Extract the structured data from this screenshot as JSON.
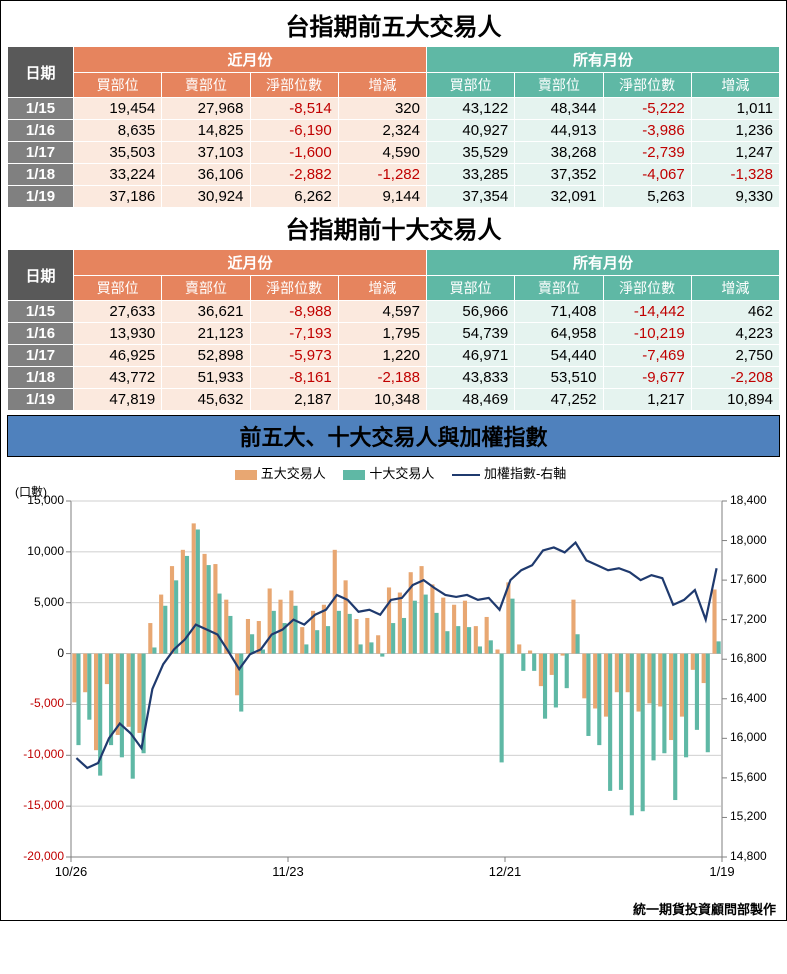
{
  "table5": {
    "title": "台指期前五大交易人",
    "date_hdr": "日期",
    "near_hdr": "近月份",
    "all_hdr": "所有月份",
    "sub_headers": [
      "買部位",
      "賣部位",
      "淨部位數",
      "增減"
    ],
    "rows": [
      {
        "date": "1/15",
        "near": [
          19454,
          27968,
          -8514,
          320
        ],
        "all": [
          43122,
          48344,
          -5222,
          1011
        ]
      },
      {
        "date": "1/16",
        "near": [
          8635,
          14825,
          -6190,
          2324
        ],
        "all": [
          40927,
          44913,
          -3986,
          1236
        ]
      },
      {
        "date": "1/17",
        "near": [
          35503,
          37103,
          -1600,
          4590
        ],
        "all": [
          35529,
          38268,
          -2739,
          1247
        ]
      },
      {
        "date": "1/18",
        "near": [
          33224,
          36106,
          -2882,
          -1282
        ],
        "all": [
          33285,
          37352,
          -4067,
          -1328
        ]
      },
      {
        "date": "1/19",
        "near": [
          37186,
          30924,
          6262,
          9144
        ],
        "all": [
          37354,
          32091,
          5263,
          9330
        ]
      }
    ]
  },
  "table10": {
    "title": "台指期前十大交易人",
    "rows": [
      {
        "date": "1/15",
        "near": [
          27633,
          36621,
          -8988,
          4597
        ],
        "all": [
          56966,
          71408,
          -14442,
          462
        ]
      },
      {
        "date": "1/16",
        "near": [
          13930,
          21123,
          -7193,
          1795
        ],
        "all": [
          54739,
          64958,
          -10219,
          4223
        ]
      },
      {
        "date": "1/17",
        "near": [
          46925,
          52898,
          -5973,
          1220
        ],
        "all": [
          46971,
          54440,
          -7469,
          2750
        ]
      },
      {
        "date": "1/18",
        "near": [
          43772,
          51933,
          -8161,
          -2188
        ],
        "all": [
          43833,
          53510,
          -9677,
          -2208
        ]
      },
      {
        "date": "1/19",
        "near": [
          47819,
          45632,
          2187,
          10348
        ],
        "all": [
          48469,
          47252,
          1217,
          10894
        ]
      }
    ]
  },
  "chart": {
    "title": "前五大、十大交易人與加權指數",
    "y_unit": "(口數)",
    "legend": {
      "s5": "五大交易人",
      "s10": "十大交易人",
      "idx": "加權指數-右軸"
    },
    "colors": {
      "s5": "#e8a772",
      "s10": "#5fb8a5",
      "idx": "#1f3a6e",
      "grid": "#bfbfbf",
      "axis": "#7f7f7f",
      "neg_label": "#c00000"
    },
    "left_axis": {
      "min": -20000,
      "max": 15000,
      "step": 5000
    },
    "right_axis": {
      "min": 14800,
      "max": 18400,
      "step": 400
    },
    "x_ticks": [
      "10/26",
      "11/23",
      "12/21",
      "1/19"
    ],
    "n_points": 60,
    "series5": [
      -4800,
      -3800,
      -9500,
      -3000,
      -8000,
      -7200,
      -7800,
      3000,
      5800,
      8600,
      10200,
      12800,
      9800,
      8800,
      5300,
      -4100,
      3400,
      3200,
      6400,
      5300,
      6200,
      2600,
      4200,
      4800,
      10200,
      7200,
      3400,
      3500,
      1800,
      6500,
      6000,
      8000,
      8600,
      6800,
      5500,
      4800,
      5200,
      2700,
      3600,
      400,
      7000,
      900,
      300,
      -3200,
      -2100,
      -200,
      5300,
      -4400,
      -5400,
      -6200,
      -3800,
      -3800,
      -5700,
      -4900,
      -5200,
      -8500,
      -6200,
      -1600,
      -2900,
      6300
    ],
    "series10": [
      -9000,
      -6500,
      -12000,
      -9000,
      -10200,
      -12300,
      -9800,
      600,
      4700,
      7200,
      9600,
      12200,
      8700,
      5900,
      3700,
      -5700,
      1900,
      400,
      4200,
      3000,
      4700,
      900,
      2300,
      2700,
      4200,
      3900,
      900,
      1100,
      -300,
      3000,
      3500,
      5200,
      5800,
      4000,
      2200,
      2700,
      2600,
      700,
      1300,
      -10700,
      5400,
      -1700,
      -1700,
      -6400,
      -5300,
      -3400,
      1900,
      -8100,
      -9000,
      -13500,
      -13400,
      -15900,
      -15500,
      -10500,
      -9800,
      -14400,
      -10200,
      -7500,
      -9700,
      1200
    ],
    "index": [
      15800,
      15700,
      15750,
      16000,
      16150,
      16050,
      15900,
      16500,
      16750,
      16900,
      17000,
      17150,
      17100,
      17050,
      16880,
      16700,
      16850,
      16900,
      17050,
      17100,
      17200,
      17150,
      17250,
      17300,
      17450,
      17400,
      17280,
      17300,
      17250,
      17400,
      17420,
      17550,
      17600,
      17520,
      17450,
      17430,
      17450,
      17400,
      17420,
      17300,
      17600,
      17700,
      17750,
      17900,
      17930,
      17880,
      17980,
      17800,
      17750,
      17700,
      17720,
      17680,
      17600,
      17650,
      17620,
      17350,
      17400,
      17500,
      17200,
      17720
    ]
  },
  "footer": "統一期貨投資顧問部製作"
}
